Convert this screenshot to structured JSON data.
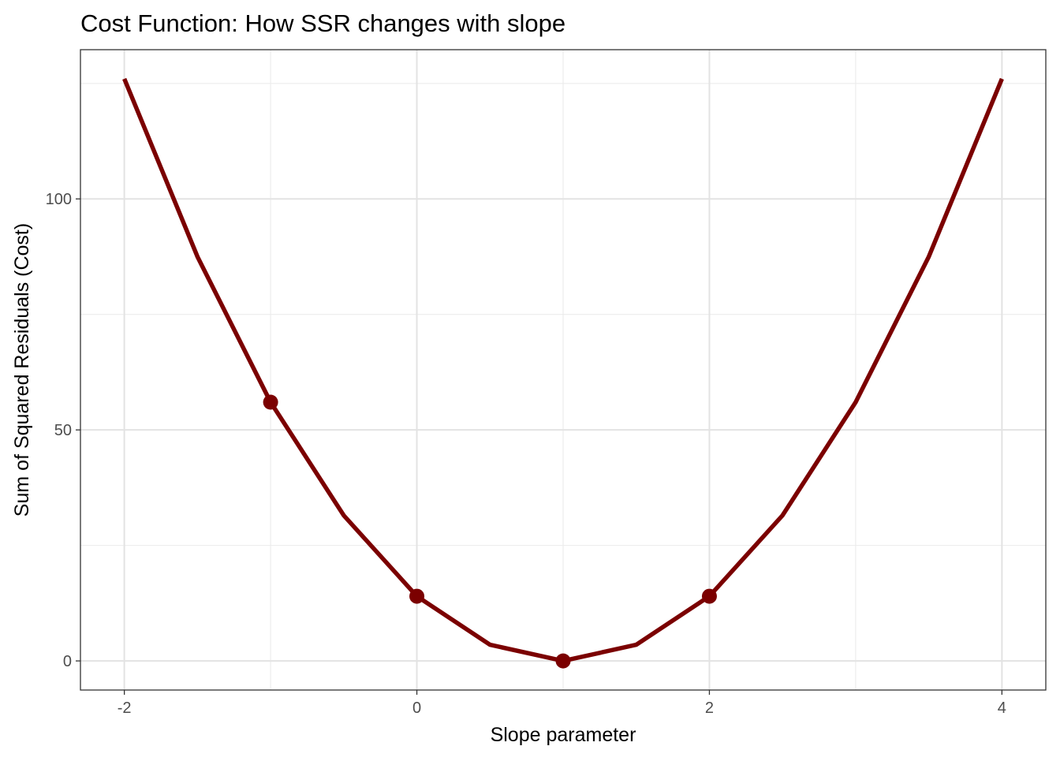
{
  "chart_data": {
    "type": "line",
    "title": "Cost Function: How SSR changes with slope",
    "xlabel": "Slope parameter",
    "ylabel": "Sum of Squared Residuals (Cost)",
    "xlim": [
      -2.3,
      4.3
    ],
    "ylim": [
      -6.3,
      132.3
    ],
    "x_ticks": [
      -2,
      0,
      2,
      4
    ],
    "x_tick_labels": [
      "-2",
      "0",
      "2",
      "4"
    ],
    "y_ticks": [
      0,
      50,
      100
    ],
    "y_tick_labels": [
      "0",
      "50",
      "100"
    ],
    "x_minor_ticks": [
      -1,
      1,
      3
    ],
    "y_minor_ticks": [
      25,
      75,
      125
    ],
    "grid": true,
    "series": [
      {
        "color": "#7b0000",
        "x": [
          -2,
          -1.5,
          -1,
          -0.5,
          0,
          0.5,
          1,
          1.5,
          2,
          2.5,
          3,
          3.5,
          4
        ],
        "y": [
          126,
          87.5,
          56,
          31.5,
          14,
          3.5,
          0,
          3.5,
          14,
          31.5,
          56,
          87.5,
          126
        ]
      }
    ],
    "highlighted_points": {
      "color": "#7b0000",
      "x": [
        -1,
        0,
        1,
        2
      ],
      "y": [
        56,
        14,
        0,
        14
      ]
    }
  }
}
